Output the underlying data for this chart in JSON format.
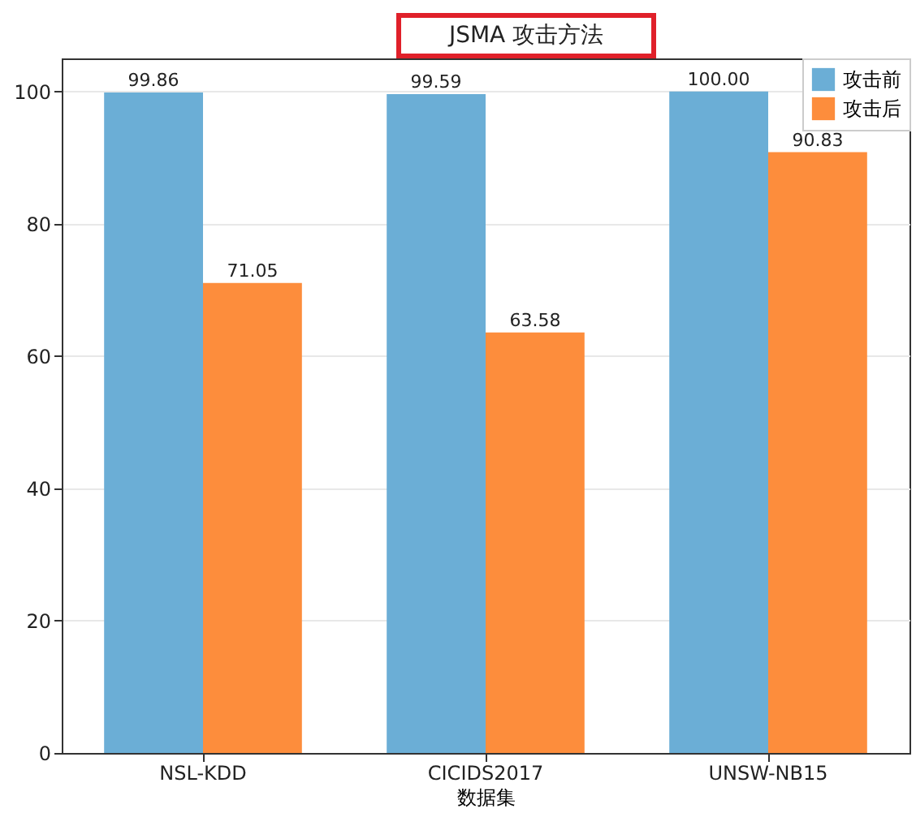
{
  "chart_data": {
    "type": "bar",
    "title": "JSMA 攻击方法",
    "xlabel": "数据集",
    "categories": [
      "NSL-KDD",
      "CICIDS2017",
      "UNSW-NB15"
    ],
    "series": [
      {
        "name": "攻击前",
        "color": "#6baed6",
        "values": [
          99.86,
          99.59,
          100.0
        ],
        "value_labels": [
          "99.86",
          "99.59",
          "100.00"
        ]
      },
      {
        "name": "攻击后",
        "color": "#fd8d3c",
        "values": [
          71.05,
          63.58,
          90.83
        ],
        "value_labels": [
          "71.05",
          "63.58",
          "90.83"
        ]
      }
    ],
    "ylim": [
      0,
      105
    ],
    "yticks": [
      0,
      20,
      40,
      60,
      80,
      100
    ],
    "grid": "y",
    "legend": "top right"
  }
}
